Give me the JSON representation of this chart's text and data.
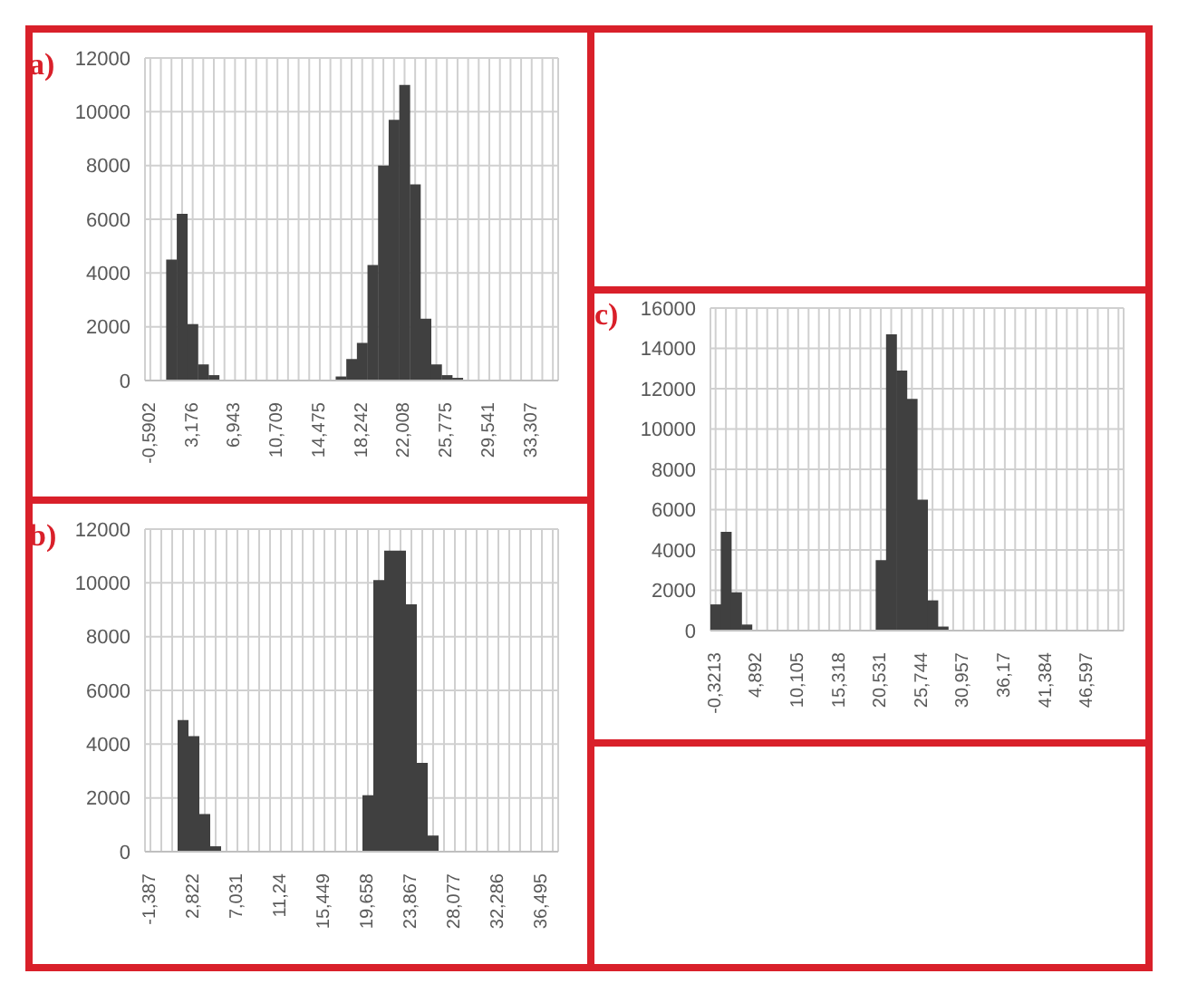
{
  "chart_data": [
    {
      "type": "bar",
      "title": "a)",
      "color": "#404040",
      "grid": true,
      "ylim": [
        0,
        12000
      ],
      "yticks": [
        0,
        2000,
        4000,
        6000,
        8000,
        10000,
        12000
      ],
      "categories": [
        "-0,5902",
        null,
        null,
        null,
        "3,176",
        null,
        null,
        null,
        "6,943",
        null,
        null,
        null,
        "10,709",
        null,
        null,
        null,
        "14,475",
        null,
        null,
        null,
        "18,242",
        null,
        null,
        null,
        "22,008",
        null,
        null,
        null,
        "25,775",
        null,
        null,
        null,
        "29,541",
        null,
        null,
        null,
        "33,307",
        null,
        null
      ],
      "values": [
        0,
        0,
        4500,
        6200,
        2100,
        600,
        200,
        0,
        0,
        0,
        0,
        0,
        0,
        0,
        0,
        0,
        0,
        0,
        150,
        800,
        1400,
        4300,
        8000,
        9700,
        11000,
        7300,
        2300,
        600,
        200,
        100,
        0,
        0,
        0,
        0,
        0,
        0,
        0,
        0,
        0
      ]
    },
    {
      "type": "bar",
      "title": "b)",
      "color": "#404040",
      "grid": true,
      "ylim": [
        0,
        12000
      ],
      "yticks": [
        0,
        2000,
        4000,
        6000,
        8000,
        10000,
        12000
      ],
      "categories": [
        "-1,387",
        null,
        null,
        null,
        "2,822",
        null,
        null,
        null,
        "7,031",
        null,
        null,
        null,
        "11,24",
        null,
        null,
        null,
        "15,449",
        null,
        null,
        null,
        "19,658",
        null,
        null,
        null,
        "23,867",
        null,
        null,
        null,
        "28,077",
        null,
        null,
        null,
        "32,286",
        null,
        null,
        null,
        "36,495",
        null
      ],
      "values": [
        0,
        0,
        0,
        4900,
        4300,
        1400,
        200,
        0,
        0,
        0,
        0,
        0,
        0,
        0,
        0,
        0,
        0,
        0,
        0,
        0,
        2100,
        10100,
        11200,
        11200,
        9200,
        3300,
        600,
        0,
        0,
        0,
        0,
        0,
        0,
        0,
        0,
        0,
        0,
        0
      ]
    },
    {
      "type": "bar",
      "title": "c)",
      "color": "#404040",
      "grid": true,
      "ylim": [
        0,
        16000
      ],
      "yticks": [
        0,
        2000,
        4000,
        6000,
        8000,
        10000,
        12000,
        14000,
        16000
      ],
      "categories": [
        "-0,3213",
        null,
        null,
        null,
        "4,892",
        null,
        null,
        null,
        "10,105",
        null,
        null,
        null,
        "15,318",
        null,
        null,
        null,
        "20,531",
        null,
        null,
        null,
        "25,744",
        null,
        null,
        null,
        "30,957",
        null,
        null,
        null,
        "36,17",
        null,
        null,
        null,
        "41,384",
        null,
        null,
        null,
        "46,597",
        null,
        null,
        null
      ],
      "values": [
        1300,
        4900,
        1900,
        300,
        0,
        0,
        0,
        0,
        0,
        0,
        0,
        0,
        0,
        0,
        0,
        0,
        3500,
        14700,
        12900,
        11500,
        6500,
        1500,
        200,
        0,
        0,
        0,
        0,
        0,
        0,
        0,
        0,
        0,
        0,
        0,
        0,
        0,
        0,
        0,
        0,
        0
      ]
    }
  ]
}
